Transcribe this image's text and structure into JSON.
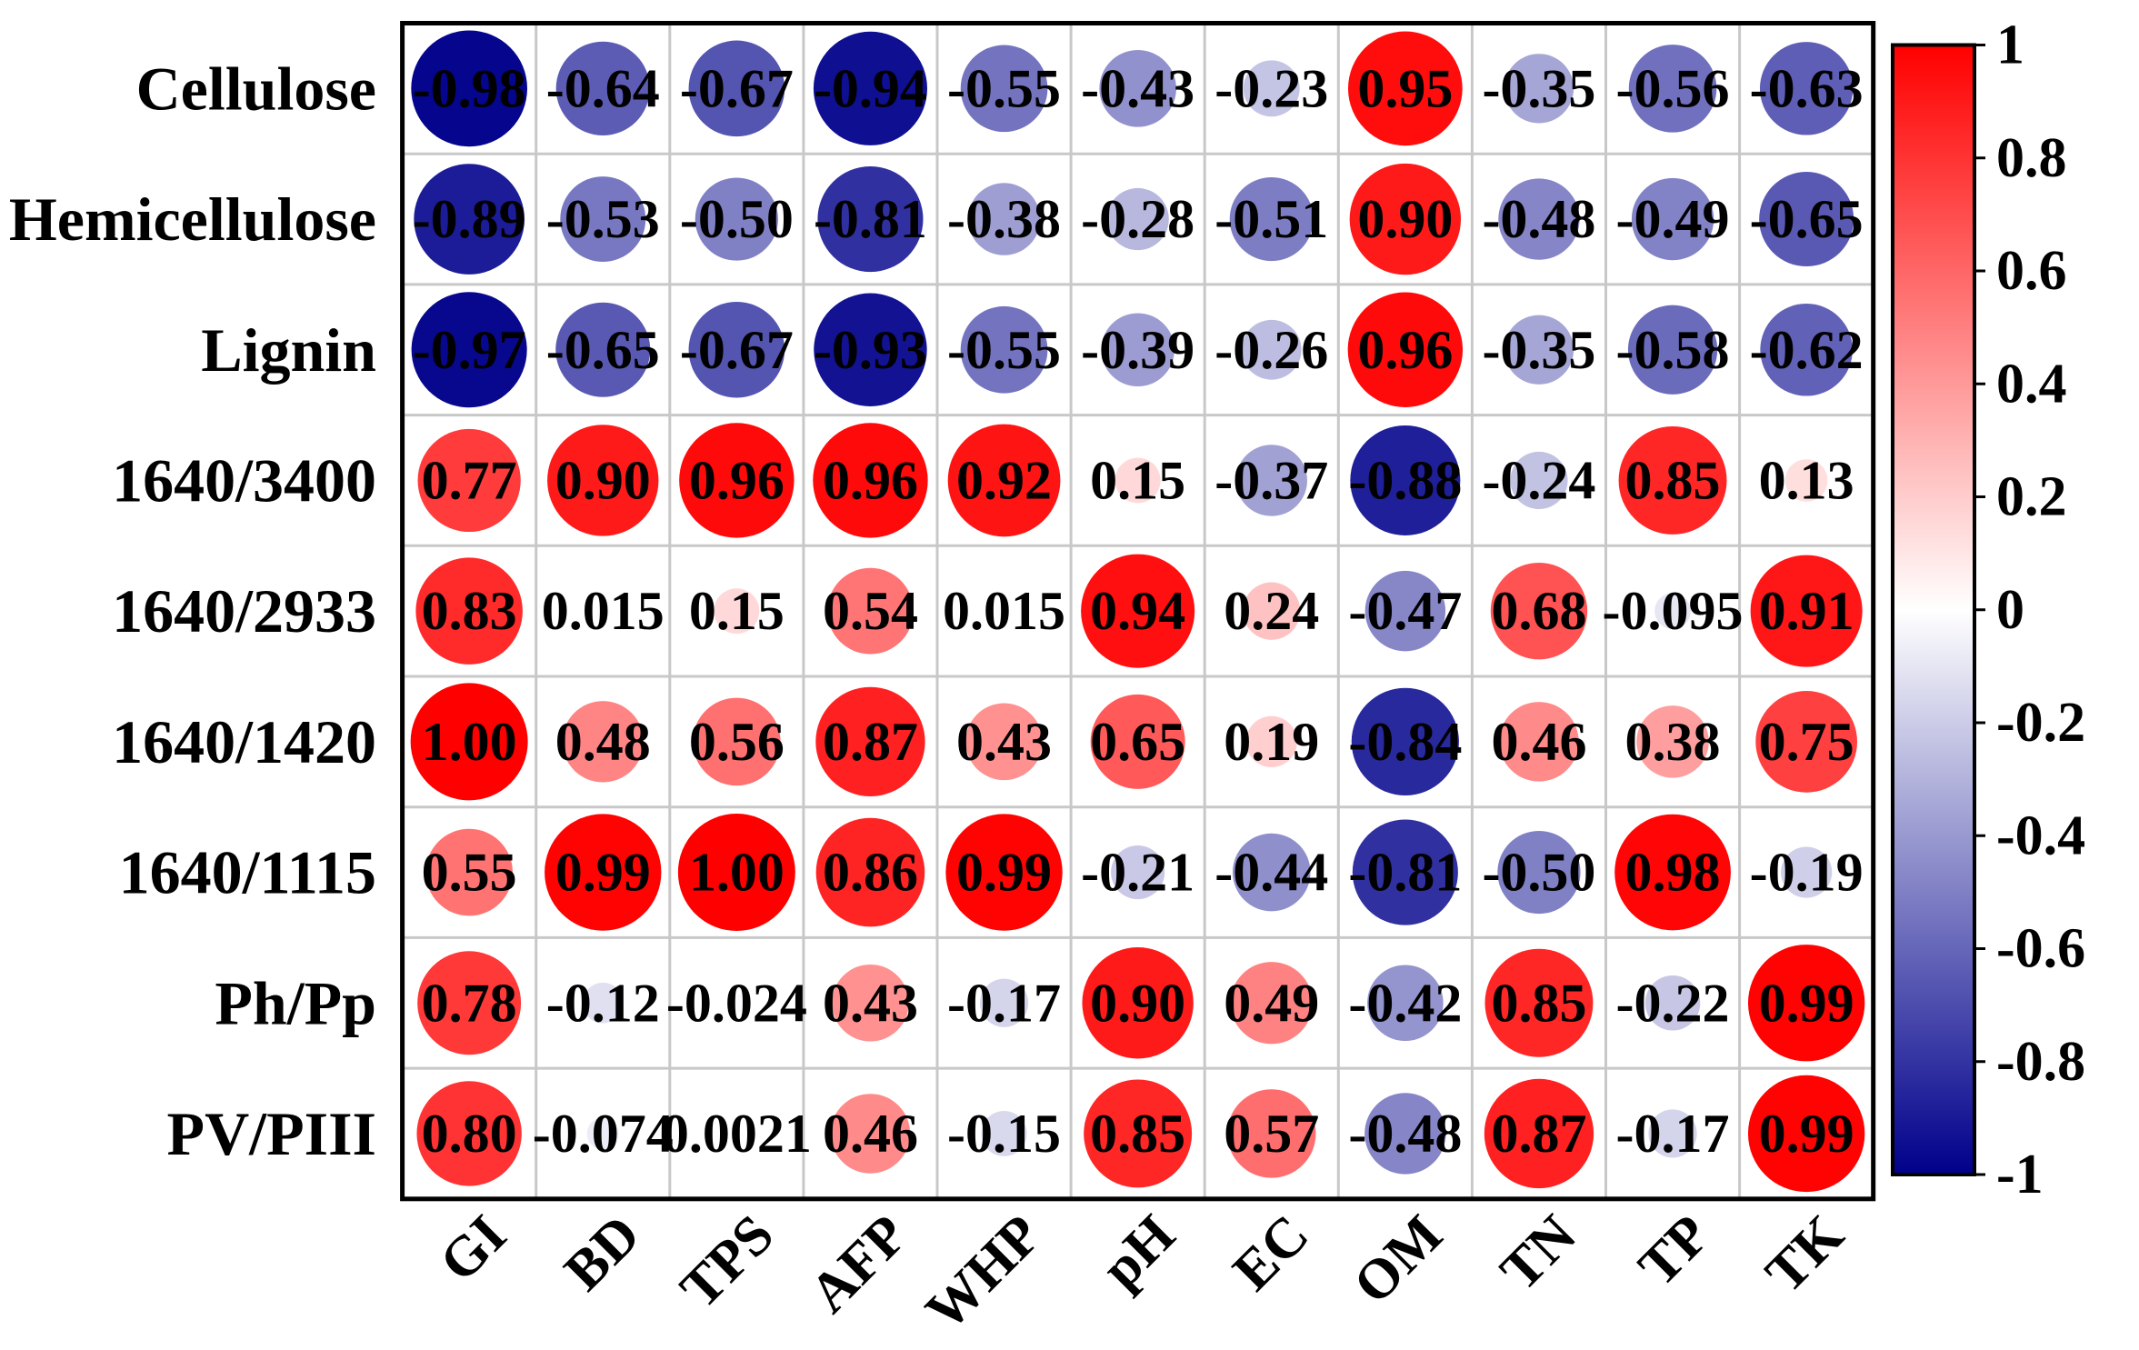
{
  "chart_data": {
    "type": "heatmap",
    "rows": [
      "Cellulose",
      "Hemicellulose",
      "Lignin",
      "1640/3400",
      "1640/2933",
      "1640/1420",
      "1640/1115",
      "Ph/Pp",
      "PV/PIII"
    ],
    "columns": [
      "GI",
      "BD",
      "TPS",
      "AFP",
      "WHP",
      "pH",
      "EC",
      "OM",
      "TN",
      "TP",
      "TK"
    ],
    "values": [
      [
        -0.98,
        -0.64,
        -0.67,
        -0.94,
        -0.55,
        -0.43,
        -0.23,
        0.95,
        -0.35,
        -0.56,
        -0.63
      ],
      [
        -0.89,
        -0.53,
        -0.5,
        -0.81,
        -0.38,
        -0.28,
        -0.51,
        0.9,
        -0.48,
        -0.49,
        -0.65
      ],
      [
        -0.97,
        -0.65,
        -0.67,
        -0.93,
        -0.55,
        -0.39,
        -0.26,
        0.96,
        -0.35,
        -0.58,
        -0.62
      ],
      [
        0.77,
        0.9,
        0.96,
        0.96,
        0.92,
        0.15,
        -0.37,
        -0.88,
        -0.24,
        0.85,
        0.13
      ],
      [
        0.83,
        0.015,
        0.15,
        0.54,
        0.015,
        0.94,
        0.24,
        -0.47,
        0.68,
        -0.095,
        0.91
      ],
      [
        1.0,
        0.48,
        0.56,
        0.87,
        0.43,
        0.65,
        0.19,
        -0.84,
        0.46,
        0.38,
        0.75
      ],
      [
        0.55,
        0.99,
        1.0,
        0.86,
        0.99,
        -0.21,
        -0.44,
        -0.81,
        -0.5,
        0.98,
        -0.19
      ],
      [
        0.78,
        -0.12,
        -0.024,
        0.43,
        -0.17,
        0.9,
        0.49,
        -0.42,
        0.85,
        -0.22,
        0.99
      ],
      [
        0.8,
        -0.074,
        0.0021,
        0.46,
        -0.15,
        0.85,
        0.57,
        -0.48,
        0.87,
        -0.17,
        0.99
      ]
    ],
    "value_labels": [
      [
        "-0.98",
        "-0.64",
        "-0.67",
        "-0.94",
        "-0.55",
        "-0.43",
        "-0.23",
        "0.95",
        "-0.35",
        "-0.56",
        "-0.63"
      ],
      [
        "-0.89",
        "-0.53",
        "-0.50",
        "-0.81",
        "-0.38",
        "-0.28",
        "-0.51",
        "0.90",
        "-0.48",
        "-0.49",
        "-0.65"
      ],
      [
        "-0.97",
        "-0.65",
        "-0.67",
        "-0.93",
        "-0.55",
        "-0.39",
        "-0.26",
        "0.96",
        "-0.35",
        "-0.58",
        "-0.62"
      ],
      [
        "0.77",
        "0.90",
        "0.96",
        "0.96",
        "0.92",
        "0.15",
        "-0.37",
        "-0.88",
        "-0.24",
        "0.85",
        "0.13"
      ],
      [
        "0.83",
        "0.015",
        "0.15",
        "0.54",
        "0.015",
        "0.94",
        "0.24",
        "-0.47",
        "0.68",
        "-0.095",
        "0.91"
      ],
      [
        "1.00",
        "0.48",
        "0.56",
        "0.87",
        "0.43",
        "0.65",
        "0.19",
        "-0.84",
        "0.46",
        "0.38",
        "0.75"
      ],
      [
        "0.55",
        "0.99",
        "1.00",
        "0.86",
        "0.99",
        "-0.21",
        "-0.44",
        "-0.81",
        "-0.50",
        "0.98",
        "-0.19"
      ],
      [
        "0.78",
        "-0.12",
        "-0.024",
        "0.43",
        "-0.17",
        "0.90",
        "0.49",
        "-0.42",
        "0.85",
        "-0.22",
        "0.99"
      ],
      [
        "0.80",
        "-0.074",
        "0.0021",
        "0.46",
        "-0.15",
        "0.85",
        "0.57",
        "-0.48",
        "0.87",
        "-0.17",
        "0.99"
      ]
    ],
    "grid": true,
    "colorbar": {
      "placement": "right",
      "range": [
        -1,
        1
      ],
      "ticks": [
        1,
        0.8,
        0.6,
        0.4,
        0.2,
        0,
        -0.2,
        -0.4,
        -0.6,
        -0.8,
        -1
      ],
      "colors": {
        "min": "#00008B",
        "mid": "#FFFFFF",
        "max": "#FF0000"
      }
    }
  }
}
